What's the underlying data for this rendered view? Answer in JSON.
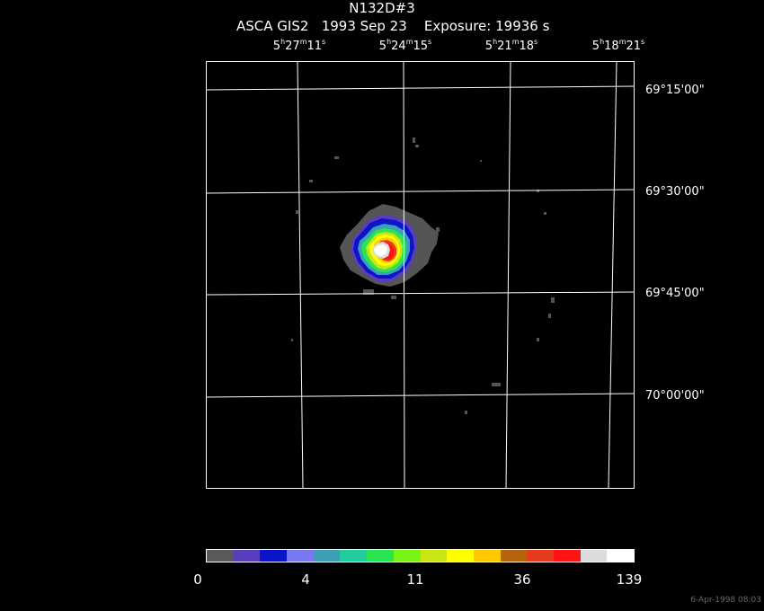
{
  "header": {
    "title": "N132D#3",
    "subtitle": "ASCA GIS2   1993 Sep 23    Exposure: 19936 s"
  },
  "ra_labels": [
    {
      "h": "5",
      "m": "27",
      "s": "11"
    },
    {
      "h": "5",
      "m": "24",
      "s": "15"
    },
    {
      "h": "5",
      "m": "21",
      "s": "18"
    },
    {
      "h": "5",
      "m": "18",
      "s": "21"
    }
  ],
  "dec_labels": [
    "69°15'00\"",
    "69°30'00\"",
    "69°45'00\"",
    "70°00'00\""
  ],
  "colorbar": {
    "colors": [
      "#5a5a5a",
      "#5a3cbe",
      "#0a14c8",
      "#7878f0",
      "#3ca0b4",
      "#1ecd9b",
      "#28e650",
      "#78f514",
      "#c8e614",
      "#ffff00",
      "#ffc800",
      "#b4640a",
      "#e63c1e",
      "#ff1414",
      "#dcdcdc",
      "#ffffff"
    ],
    "ticks": [
      "0",
      "4",
      "11",
      "36",
      "139"
    ]
  },
  "timestamp": "6-Apr-1998 08:03"
}
